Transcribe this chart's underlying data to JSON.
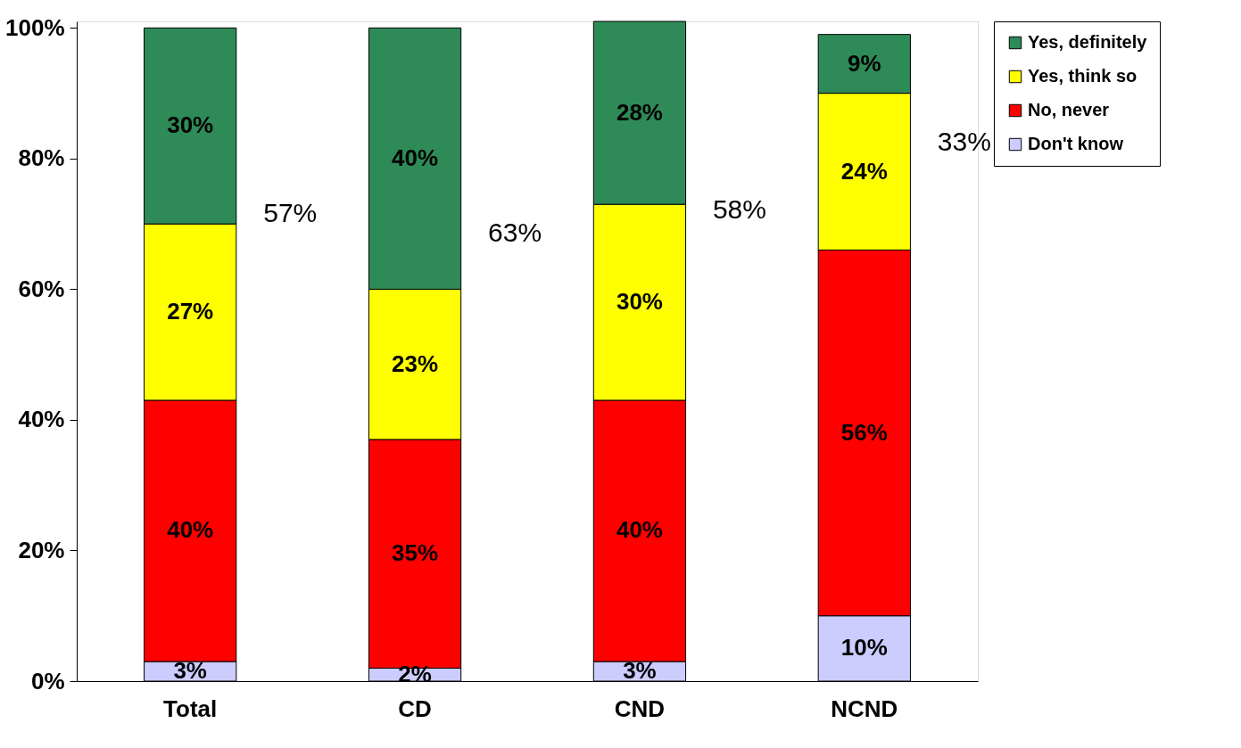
{
  "chart_data": {
    "type": "bar",
    "stacked": true,
    "categories": [
      "Total",
      "CD",
      "CND",
      "NCND"
    ],
    "series": [
      {
        "name": "Don't know",
        "color": "#ccccff",
        "values": [
          3,
          2,
          3,
          10
        ],
        "value_labels": [
          "3%",
          "2%",
          "3%",
          "10%"
        ]
      },
      {
        "name": "No, never",
        "color": "#ff0000",
        "values": [
          40,
          35,
          40,
          56
        ],
        "value_labels": [
          "40%",
          "35%",
          "40%",
          "56%"
        ]
      },
      {
        "name": "Yes, think so",
        "color": "#ffff00",
        "values": [
          27,
          23,
          30,
          24
        ],
        "value_labels": [
          "27%",
          "23%",
          "30%",
          "24%"
        ]
      },
      {
        "name": "Yes, definitely",
        "color": "#2e8b57",
        "values": [
          30,
          40,
          28,
          9
        ],
        "value_labels": [
          "30%",
          "40%",
          "28%",
          "9%"
        ]
      }
    ],
    "ylim": [
      0,
      101
    ],
    "yticks": [
      {
        "value": 0,
        "label": "0%"
      },
      {
        "value": 20,
        "label": "20%"
      },
      {
        "value": 40,
        "label": "40%"
      },
      {
        "value": 60,
        "label": "60%"
      },
      {
        "value": 80,
        "label": "80%"
      },
      {
        "value": 100,
        "label": "100%"
      }
    ],
    "annotations": [
      "57%",
      "63%",
      "58%",
      "33%"
    ],
    "legend": "right",
    "grid": false
  }
}
